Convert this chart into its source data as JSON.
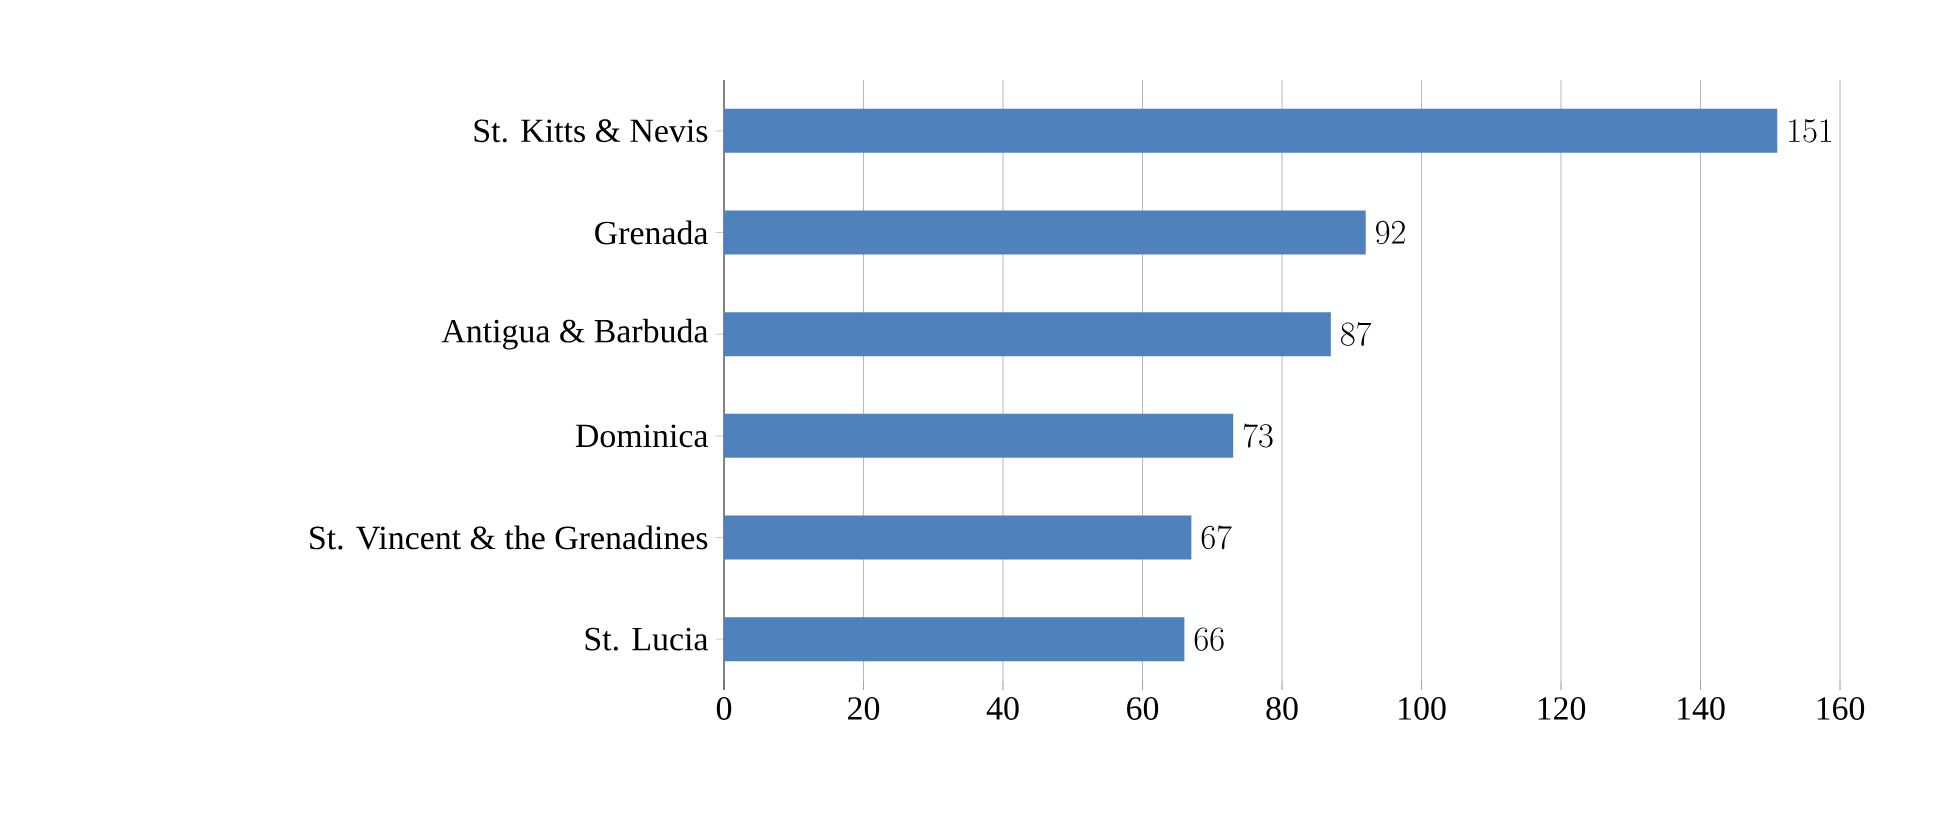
{
  "chart_data": {
    "type": "bar",
    "orientation": "horizontal",
    "categories": [
      "St. Kitts & Nevis",
      "Grenada",
      "Antigua & Barbuda",
      "Dominica",
      "St. Vincent & the Grenadines",
      "St. Lucia"
    ],
    "values": [
      151,
      92,
      87,
      73,
      67,
      66
    ],
    "color": "#4f81bd",
    "data_labels": true,
    "xlim": [
      0,
      160
    ],
    "xticks": [
      0,
      20,
      40,
      60,
      80,
      100,
      120,
      140,
      160
    ],
    "grid": "x"
  }
}
